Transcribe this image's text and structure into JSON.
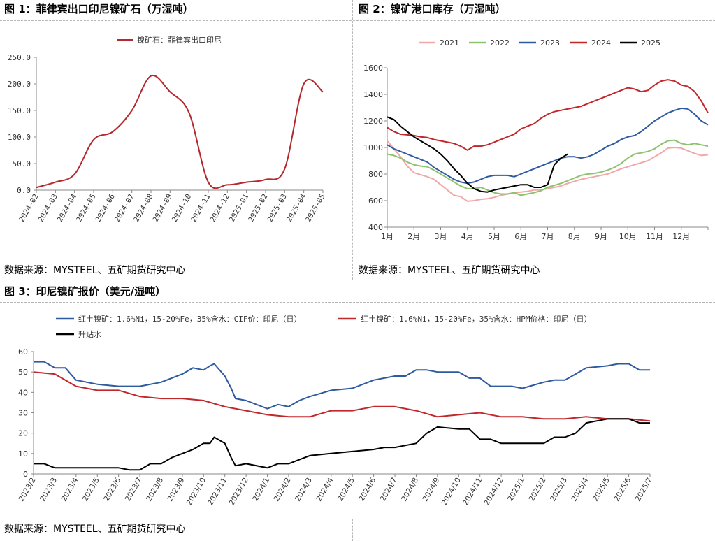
{
  "panel1": {
    "title": "图 1：菲律宾出口印尼镍矿石（万湿吨）",
    "source": "数据来源：MYSTEEL、五矿期货研究中心"
  },
  "panel2": {
    "title": "图 2：镍矿港口库存（万湿吨）",
    "source": "数据来源：MYSTEEL、五矿期货研究中心"
  },
  "panel3": {
    "title": "图 3：印尼镍矿报价（美元/湿吨）",
    "source": "数据来源：MYSTEEL、五矿期货研究中心"
  },
  "chart_data": [
    {
      "id": "chart1",
      "type": "line",
      "title": "",
      "xlabel": "",
      "ylabel": "",
      "ylim": [
        0,
        250
      ],
      "yticks": [
        "0.0",
        "50.0",
        "100.0",
        "150.0",
        "200.0",
        "250.0"
      ],
      "categories": [
        "2024-02",
        "2024-03",
        "2024-04",
        "2024-05",
        "2024-06",
        "2024-07",
        "2024-08",
        "2024-09",
        "2024-10",
        "2024-11",
        "2024-12",
        "2025-01",
        "2025-02",
        "2025-03",
        "2025-04",
        "2025-05"
      ],
      "legend_position": "top",
      "grid": false,
      "series": [
        {
          "name": "镍矿石：菲律宾出口印尼",
          "color": "#b22a2e",
          "values": [
            5,
            15,
            30,
            95,
            110,
            150,
            215,
            185,
            145,
            15,
            10,
            15,
            20,
            40,
            200,
            185
          ]
        }
      ]
    },
    {
      "id": "chart2",
      "type": "line",
      "title": "",
      "xlabel": "",
      "ylabel": "",
      "ylim": [
        400,
        1600
      ],
      "yticks": [
        "400",
        "600",
        "800",
        "1000",
        "1200",
        "1400",
        "1600"
      ],
      "x_range": [
        1,
        13
      ],
      "month_labels": [
        "1月",
        "2月",
        "3月",
        "4月",
        "5月",
        "6月",
        "7月",
        "8月",
        "9月",
        "10月",
        "11月",
        "12月"
      ],
      "legend_position": "top",
      "grid": false,
      "series": [
        {
          "name": "2021",
          "color": "#f2a7a8",
          "x": [
            1,
            1.25,
            1.5,
            1.75,
            2,
            2.25,
            2.5,
            2.75,
            3,
            3.25,
            3.5,
            3.75,
            4,
            4.25,
            4.5,
            4.75,
            5,
            5.25,
            5.5,
            5.75,
            6,
            6.25,
            6.5,
            6.75,
            7,
            7.25,
            7.5,
            7.75,
            8,
            8.25,
            8.5,
            8.75,
            9,
            9.25,
            9.5,
            9.75,
            10,
            10.25,
            10.5,
            10.75,
            11,
            11.25,
            11.5,
            11.75,
            12,
            12.25,
            12.5,
            12.75,
            13
          ],
          "y": [
            1050,
            990,
            930,
            860,
            810,
            795,
            780,
            760,
            720,
            680,
            640,
            630,
            595,
            600,
            610,
            615,
            625,
            640,
            650,
            660,
            665,
            670,
            680,
            680,
            690,
            700,
            710,
            730,
            745,
            760,
            770,
            780,
            790,
            800,
            820,
            840,
            855,
            870,
            885,
            900,
            930,
            960,
            995,
            1000,
            995,
            975,
            955,
            940,
            945
          ]
        },
        {
          "name": "2022",
          "color": "#8fc26f",
          "x": [
            1,
            1.25,
            1.5,
            1.75,
            2,
            2.25,
            2.5,
            2.75,
            3,
            3.25,
            3.5,
            3.75,
            4,
            4.25,
            4.5,
            4.75,
            5,
            5.25,
            5.5,
            5.75,
            6,
            6.25,
            6.5,
            6.75,
            7,
            7.25,
            7.5,
            7.75,
            8,
            8.25,
            8.5,
            8.75,
            9,
            9.25,
            9.5,
            9.75,
            10,
            10.25,
            10.5,
            10.75,
            11,
            11.25,
            11.5,
            11.75,
            12,
            12.25,
            12.5,
            12.75,
            13
          ],
          "y": [
            950,
            940,
            920,
            890,
            870,
            860,
            855,
            830,
            800,
            770,
            740,
            710,
            690,
            690,
            700,
            680,
            660,
            650,
            650,
            660,
            640,
            650,
            660,
            675,
            700,
            715,
            730,
            750,
            770,
            790,
            800,
            805,
            815,
            830,
            850,
            880,
            920,
            950,
            960,
            970,
            990,
            1025,
            1050,
            1055,
            1030,
            1020,
            1030,
            1020,
            1010
          ]
        },
        {
          "name": "2023",
          "color": "#2e5aa0",
          "x": [
            1,
            1.25,
            1.5,
            1.75,
            2,
            2.25,
            2.5,
            2.75,
            3,
            3.25,
            3.5,
            3.75,
            4,
            4.25,
            4.5,
            4.75,
            5,
            5.25,
            5.5,
            5.75,
            6,
            6.25,
            6.5,
            6.75,
            7,
            7.25,
            7.5,
            7.75,
            8,
            8.25,
            8.5,
            8.75,
            9,
            9.25,
            9.5,
            9.75,
            10,
            10.25,
            10.5,
            10.75,
            11,
            11.25,
            11.5,
            11.75,
            12,
            12.25,
            12.5,
            12.75,
            13
          ],
          "y": [
            1020,
            990,
            970,
            950,
            930,
            910,
            890,
            850,
            820,
            790,
            760,
            740,
            730,
            740,
            760,
            780,
            790,
            790,
            790,
            780,
            800,
            820,
            840,
            860,
            880,
            900,
            920,
            930,
            930,
            920,
            930,
            950,
            980,
            1010,
            1030,
            1060,
            1080,
            1090,
            1120,
            1160,
            1200,
            1230,
            1260,
            1280,
            1295,
            1290,
            1250,
            1200,
            1170
          ]
        },
        {
          "name": "2024",
          "color": "#c0282b",
          "x": [
            1,
            1.25,
            1.5,
            1.75,
            2,
            2.25,
            2.5,
            2.75,
            3,
            3.25,
            3.5,
            3.75,
            4,
            4.25,
            4.5,
            4.75,
            5,
            5.25,
            5.5,
            5.75,
            6,
            6.25,
            6.5,
            6.75,
            7,
            7.25,
            7.5,
            7.75,
            8,
            8.25,
            8.5,
            8.75,
            9,
            9.25,
            9.5,
            9.75,
            10,
            10.25,
            10.5,
            10.75,
            11,
            11.25,
            11.5,
            11.75,
            12,
            12.25,
            12.5,
            12.75,
            13
          ],
          "y": [
            1150,
            1120,
            1100,
            1095,
            1090,
            1080,
            1075,
            1060,
            1050,
            1040,
            1030,
            1010,
            980,
            1010,
            1010,
            1020,
            1040,
            1060,
            1080,
            1100,
            1140,
            1160,
            1180,
            1220,
            1250,
            1270,
            1280,
            1290,
            1300,
            1310,
            1330,
            1350,
            1370,
            1390,
            1410,
            1430,
            1450,
            1440,
            1420,
            1430,
            1470,
            1500,
            1510,
            1500,
            1470,
            1460,
            1420,
            1350,
            1260
          ]
        },
        {
          "name": "2025",
          "color": "#000000",
          "x": [
            1,
            1.25,
            1.5,
            1.75,
            2,
            2.25,
            2.5,
            2.75,
            3,
            3.25,
            3.5,
            3.75,
            4,
            4.25,
            4.5,
            4.75,
            5,
            5.25,
            5.5,
            5.75,
            6,
            6.25,
            6.5,
            6.75,
            7,
            7.25,
            7.5,
            7.75
          ],
          "y": [
            1230,
            1210,
            1160,
            1120,
            1080,
            1050,
            1020,
            990,
            950,
            900,
            840,
            790,
            730,
            690,
            670,
            665,
            680,
            690,
            700,
            710,
            720,
            720,
            700,
            700,
            720,
            870,
            920,
            950
          ]
        }
      ]
    },
    {
      "id": "chart3",
      "type": "line",
      "title": "",
      "xlabel": "",
      "ylabel": "",
      "ylim": [
        0,
        60
      ],
      "yticks": [
        "0",
        "10",
        "20",
        "30",
        "40",
        "50",
        "60"
      ],
      "categories": [
        "2023/2",
        "2023/3",
        "2023/4",
        "2023/5",
        "2023/6",
        "2023/7",
        "2023/8",
        "2023/9",
        "2023/10",
        "2023/11",
        "2023/12",
        "2024/1",
        "2024/2",
        "2024/3",
        "2024/4",
        "2024/5",
        "2024/6",
        "2024/7",
        "2024/8",
        "2024/9",
        "2024/10",
        "2024/11",
        "2024/12",
        "2025/1",
        "2025/2",
        "2025/3",
        "2025/4",
        "2025/5",
        "2025/6",
        "2025/7"
      ],
      "legend_position": "top",
      "grid": false,
      "series": [
        {
          "name": "红土镍矿：1.6%Ni，15-20%Fe，35%含水：CIF价：印尼（日）",
          "color": "#2e5aa0",
          "x": [
            0,
            0.5,
            1,
            1.5,
            2,
            3,
            4,
            5,
            6,
            6.5,
            7,
            7.5,
            8,
            8.3,
            8.5,
            9,
            9.3,
            9.5,
            10,
            11,
            11.5,
            12,
            12.5,
            13,
            14,
            15,
            16,
            16.5,
            17,
            17.5,
            18,
            18.5,
            19,
            20,
            20.5,
            21,
            21.5,
            22,
            22.5,
            23,
            24,
            24.5,
            25,
            25.5,
            26,
            27,
            27.5,
            28,
            28.5,
            29
          ],
          "y": [
            55,
            55,
            52,
            52,
            46,
            44,
            43,
            43,
            45,
            47,
            49,
            52,
            51,
            53,
            54,
            48,
            42,
            37,
            36,
            32,
            34,
            33,
            36,
            38,
            41,
            42,
            46,
            47,
            48,
            48,
            51,
            51,
            50,
            50,
            47,
            47,
            43,
            43,
            43,
            42,
            45,
            46,
            46,
            49,
            52,
            53,
            54,
            54,
            51,
            51
          ]
        },
        {
          "name": "红土镍矿：1.6%Ni，15-20%Fe，35%含水：HPM价格：印尼（日）",
          "color": "#c0282b",
          "x": [
            0,
            1,
            2,
            3,
            4,
            5,
            6,
            7,
            8,
            9,
            10,
            11,
            12,
            13,
            14,
            15,
            16,
            17,
            18,
            19,
            20,
            21,
            22,
            23,
            24,
            25,
            26,
            27,
            28,
            29
          ],
          "y": [
            50,
            49,
            43,
            41,
            41,
            38,
            37,
            37,
            36,
            33,
            31,
            29,
            28,
            28,
            31,
            31,
            33,
            33,
            31,
            28,
            29,
            30,
            28,
            28,
            27,
            27,
            28,
            27,
            27,
            26
          ]
        },
        {
          "name": "升贴水",
          "color": "#000000",
          "x": [
            0,
            0.5,
            1,
            2,
            3,
            4,
            4.5,
            5,
            5.5,
            6,
            6.5,
            7,
            7.5,
            8,
            8.3,
            8.5,
            9,
            9.3,
            9.5,
            10,
            11,
            11.5,
            12,
            12.5,
            13,
            14,
            15,
            16,
            16.5,
            17,
            17.5,
            18,
            18.5,
            19,
            20,
            20.5,
            21,
            21.5,
            22,
            22.5,
            23,
            24,
            24.5,
            25,
            25.5,
            26,
            27,
            27.5,
            28,
            28.5,
            29
          ],
          "y": [
            5,
            5,
            3,
            3,
            3,
            3,
            2,
            2,
            5,
            5,
            8,
            10,
            12,
            15,
            15,
            18,
            15,
            8,
            4,
            5,
            3,
            5,
            5,
            7,
            9,
            10,
            11,
            12,
            13,
            13,
            14,
            15,
            20,
            23,
            22,
            22,
            17,
            17,
            15,
            15,
            15,
            15,
            18,
            18,
            20,
            25,
            27,
            27,
            27,
            25,
            25
          ]
        }
      ]
    }
  ]
}
